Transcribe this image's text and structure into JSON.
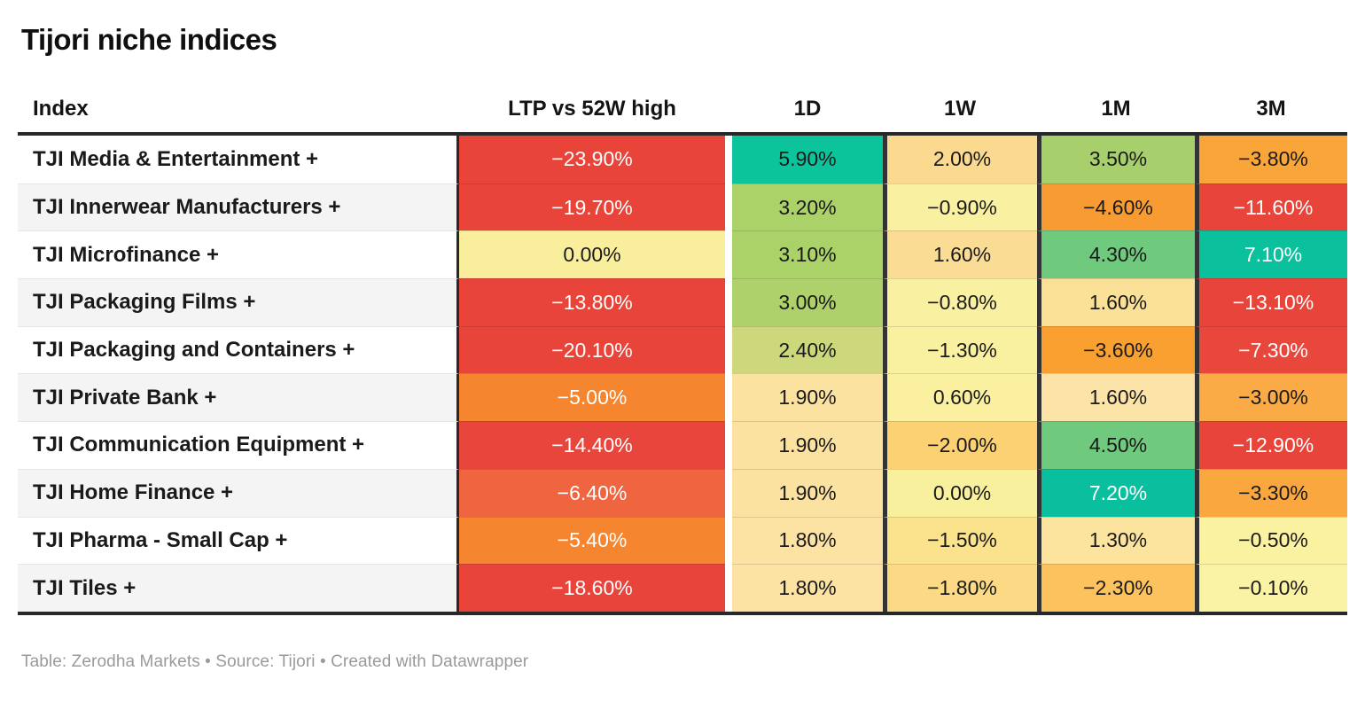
{
  "title": "Tijori niche indices",
  "header": {
    "col_index": "Index",
    "col_ltp": "LTP vs 52W high",
    "col_1d": "1D",
    "col_1w": "1W",
    "col_1m": "1M",
    "col_3m": "3M"
  },
  "colors": {
    "strong_negative": "#e8443a",
    "negative_orange": "#f5862f",
    "neutral_yellow": "#f9f1a1",
    "positive_yellow_green": "#abd169",
    "strong_positive_teal": "#0bc09d",
    "header_border": "#282828",
    "column_gutter": "#333333",
    "zebra_stripe": "#f4f4f4",
    "footer_text": "#9a9a9a"
  },
  "rows": [
    {
      "name": "TJI Media & Entertainment +",
      "cells": [
        {
          "text": "−23.90%",
          "bg": "#e8443a",
          "fg": "#ffffff"
        },
        {
          "text": "5.90%",
          "bg": "#0cc49c",
          "fg": "#1a1a1a"
        },
        {
          "text": "2.00%",
          "bg": "#fbd98e",
          "fg": "#1a1a1a"
        },
        {
          "text": "3.50%",
          "bg": "#a7cf6c",
          "fg": "#1a1a1a"
        },
        {
          "text": "−3.80%",
          "bg": "#f9a53a",
          "fg": "#1a1a1a"
        }
      ]
    },
    {
      "name": "TJI Innerwear Manufacturers +",
      "cells": [
        {
          "text": "−19.70%",
          "bg": "#e8443a",
          "fg": "#ffffff"
        },
        {
          "text": "3.20%",
          "bg": "#abd169",
          "fg": "#1a1a1a"
        },
        {
          "text": "−0.90%",
          "bg": "#f9f1a1",
          "fg": "#1a1a1a"
        },
        {
          "text": "−4.60%",
          "bg": "#f89b33",
          "fg": "#1a1a1a"
        },
        {
          "text": "−11.60%",
          "bg": "#e8443a",
          "fg": "#ffffff"
        }
      ]
    },
    {
      "name": "TJI Microfinance +",
      "cells": [
        {
          "text": "0.00%",
          "bg": "#f9ee9c",
          "fg": "#1a1a1a"
        },
        {
          "text": "3.10%",
          "bg": "#abd169",
          "fg": "#1a1a1a"
        },
        {
          "text": "1.60%",
          "bg": "#fbdc95",
          "fg": "#1a1a1a"
        },
        {
          "text": "4.30%",
          "bg": "#70ca7e",
          "fg": "#1a1a1a"
        },
        {
          "text": "7.10%",
          "bg": "#0bc09d",
          "fg": "#ffffff"
        }
      ]
    },
    {
      "name": "TJI Packaging Films +",
      "cells": [
        {
          "text": "−13.80%",
          "bg": "#e8443a",
          "fg": "#ffffff"
        },
        {
          "text": "3.00%",
          "bg": "#aed16c",
          "fg": "#1a1a1a"
        },
        {
          "text": "−0.80%",
          "bg": "#f9f1a1",
          "fg": "#1a1a1a"
        },
        {
          "text": "1.60%",
          "bg": "#fbe098",
          "fg": "#1a1a1a"
        },
        {
          "text": "−13.10%",
          "bg": "#e8443a",
          "fg": "#ffffff"
        }
      ]
    },
    {
      "name": "TJI Packaging and Containers +",
      "cells": [
        {
          "text": "−20.10%",
          "bg": "#e8443a",
          "fg": "#ffffff"
        },
        {
          "text": "2.40%",
          "bg": "#ccd87b",
          "fg": "#1a1a1a"
        },
        {
          "text": "−1.30%",
          "bg": "#f9f0a0",
          "fg": "#1a1a1a"
        },
        {
          "text": "−3.60%",
          "bg": "#f9a031",
          "fg": "#1a1a1a"
        },
        {
          "text": "−7.30%",
          "bg": "#e9473b",
          "fg": "#ffffff"
        }
      ]
    },
    {
      "name": "TJI Private Bank +",
      "cells": [
        {
          "text": "−5.00%",
          "bg": "#f5862f",
          "fg": "#ffffff"
        },
        {
          "text": "1.90%",
          "bg": "#fce2a1",
          "fg": "#1a1a1a"
        },
        {
          "text": "0.60%",
          "bg": "#faf0a0",
          "fg": "#1a1a1a"
        },
        {
          "text": "1.60%",
          "bg": "#fce3a7",
          "fg": "#1a1a1a"
        },
        {
          "text": "−3.00%",
          "bg": "#faab45",
          "fg": "#1a1a1a"
        }
      ]
    },
    {
      "name": "TJI Communication Equipment +",
      "cells": [
        {
          "text": "−14.40%",
          "bg": "#e8453c",
          "fg": "#ffffff"
        },
        {
          "text": "1.90%",
          "bg": "#fce2a1",
          "fg": "#1a1a1a"
        },
        {
          "text": "−2.00%",
          "bg": "#fbd173",
          "fg": "#1a1a1a"
        },
        {
          "text": "4.50%",
          "bg": "#6fca7e",
          "fg": "#1a1a1a"
        },
        {
          "text": "−12.90%",
          "bg": "#e8443a",
          "fg": "#ffffff"
        }
      ]
    },
    {
      "name": "TJI Home Finance +",
      "cells": [
        {
          "text": "−6.40%",
          "bg": "#ee6540",
          "fg": "#ffffff"
        },
        {
          "text": "1.90%",
          "bg": "#fce2a1",
          "fg": "#1a1a1a"
        },
        {
          "text": "0.00%",
          "bg": "#f9f09e",
          "fg": "#1a1a1a"
        },
        {
          "text": "7.20%",
          "bg": "#0abf9e",
          "fg": "#ffffff"
        },
        {
          "text": "−3.30%",
          "bg": "#faa73f",
          "fg": "#1a1a1a"
        }
      ]
    },
    {
      "name": "TJI Pharma - Small Cap +",
      "cells": [
        {
          "text": "−5.40%",
          "bg": "#f5852e",
          "fg": "#ffffff"
        },
        {
          "text": "1.80%",
          "bg": "#fce3a4",
          "fg": "#1a1a1a"
        },
        {
          "text": "−1.50%",
          "bg": "#fbe28c",
          "fg": "#1a1a1a"
        },
        {
          "text": "1.30%",
          "bg": "#fce49f",
          "fg": "#1a1a1a"
        },
        {
          "text": "−0.50%",
          "bg": "#faf1a1",
          "fg": "#1a1a1a"
        }
      ]
    },
    {
      "name": "TJI Tiles +",
      "cells": [
        {
          "text": "−18.60%",
          "bg": "#e8443a",
          "fg": "#ffffff"
        },
        {
          "text": "1.80%",
          "bg": "#fce3a4",
          "fg": "#1a1a1a"
        },
        {
          "text": "−1.80%",
          "bg": "#fbd985",
          "fg": "#1a1a1a"
        },
        {
          "text": "−2.30%",
          "bg": "#fbc25e",
          "fg": "#1a1a1a"
        },
        {
          "text": "−0.10%",
          "bg": "#faf2a4",
          "fg": "#1a1a1a"
        }
      ]
    }
  ],
  "footer": "Table: Zerodha Markets • Source: Tijori • Created with Datawrapper",
  "chart_data": {
    "type": "table",
    "title": "Tijori niche indices",
    "columns": [
      "Index",
      "LTP vs 52W high",
      "1D",
      "1W",
      "1M",
      "3M"
    ],
    "units": "percent",
    "color_scale": "red (negative) → yellow (neutral) → green/teal (positive) heatmap",
    "rows": [
      [
        "TJI Media & Entertainment +",
        -23.9,
        5.9,
        2.0,
        3.5,
        -3.8
      ],
      [
        "TJI Innerwear Manufacturers +",
        -19.7,
        3.2,
        -0.9,
        -4.6,
        -11.6
      ],
      [
        "TJI Microfinance +",
        0.0,
        3.1,
        1.6,
        4.3,
        7.1
      ],
      [
        "TJI Packaging Films +",
        -13.8,
        3.0,
        -0.8,
        1.6,
        -13.1
      ],
      [
        "TJI Packaging and Containers +",
        -20.1,
        2.4,
        -1.3,
        -3.6,
        -7.3
      ],
      [
        "TJI Private Bank +",
        -5.0,
        1.9,
        0.6,
        1.6,
        -3.0
      ],
      [
        "TJI Communication Equipment +",
        -14.4,
        1.9,
        -2.0,
        4.5,
        -12.9
      ],
      [
        "TJI Home Finance +",
        -6.4,
        1.9,
        0.0,
        7.2,
        -3.3
      ],
      [
        "TJI Pharma - Small Cap +",
        -5.4,
        1.8,
        -1.5,
        1.3,
        -0.5
      ],
      [
        "TJI Tiles +",
        -18.6,
        1.8,
        -1.8,
        -2.3,
        -0.1
      ]
    ],
    "footer": "Table: Zerodha Markets • Source: Tijori • Created with Datawrapper"
  }
}
